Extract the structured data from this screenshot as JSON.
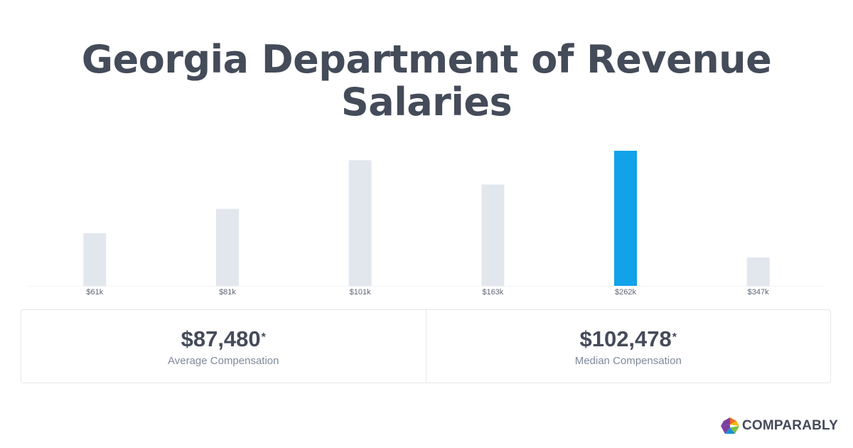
{
  "title": {
    "line1": "Georgia Department of Revenue",
    "line2": "Salaries"
  },
  "chart_data": {
    "type": "bar",
    "categories": [
      "$61k",
      "$81k",
      "$101k",
      "$163k",
      "$262k",
      "$347k"
    ],
    "values": [
      39,
      57,
      93,
      75,
      100,
      21
    ],
    "highlight_index": 4,
    "bar_color": "#e2e7ed",
    "highlight_color": "#12a2ea",
    "ylim": [
      0,
      100
    ],
    "grid": false,
    "legend": "none"
  },
  "stats": {
    "average": {
      "value": "$87,480",
      "asterisk": "*",
      "label": "Average Compensation"
    },
    "median": {
      "value": "$102,478",
      "asterisk": "*",
      "label": "Median Compensation"
    }
  },
  "brand": {
    "name": "COMPARABLY",
    "icon": "comparably-logo-icon",
    "colors": [
      "#f26b2b",
      "#f5b800",
      "#7ac143",
      "#1a8fd8",
      "#7b3fa0"
    ]
  }
}
